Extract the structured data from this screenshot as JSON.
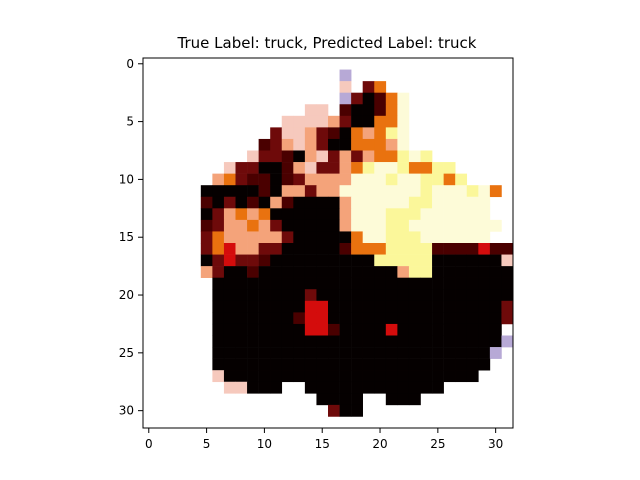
{
  "figure": {
    "title": "True Label: truck, Predicted Label: truck"
  },
  "axes": {
    "x_ticks": [
      "0",
      "5",
      "10",
      "15",
      "20",
      "25",
      "30"
    ],
    "y_ticks": [
      "0",
      "5",
      "10",
      "15",
      "20",
      "25",
      "30"
    ],
    "x_tick_values": [
      0,
      5,
      10,
      15,
      20,
      25,
      30
    ],
    "y_tick_values": [
      0,
      5,
      10,
      15,
      20,
      25,
      30
    ],
    "grid_size": [
      32,
      32
    ]
  },
  "image": {
    "description_palette": {
      "black": "#050000",
      "dark_red": "#4a0000",
      "maroon": "#6e0a0a",
      "red": "#d40c0c",
      "orange": "#e9720f",
      "peach": "#f4a37a",
      "pale_pink": "#f6c9bd",
      "cream": "#fdfbd8",
      "pale_yellow": "#fbf79a",
      "lavender": "#b7a9d6",
      "white": "#ffffff"
    }
  }
}
